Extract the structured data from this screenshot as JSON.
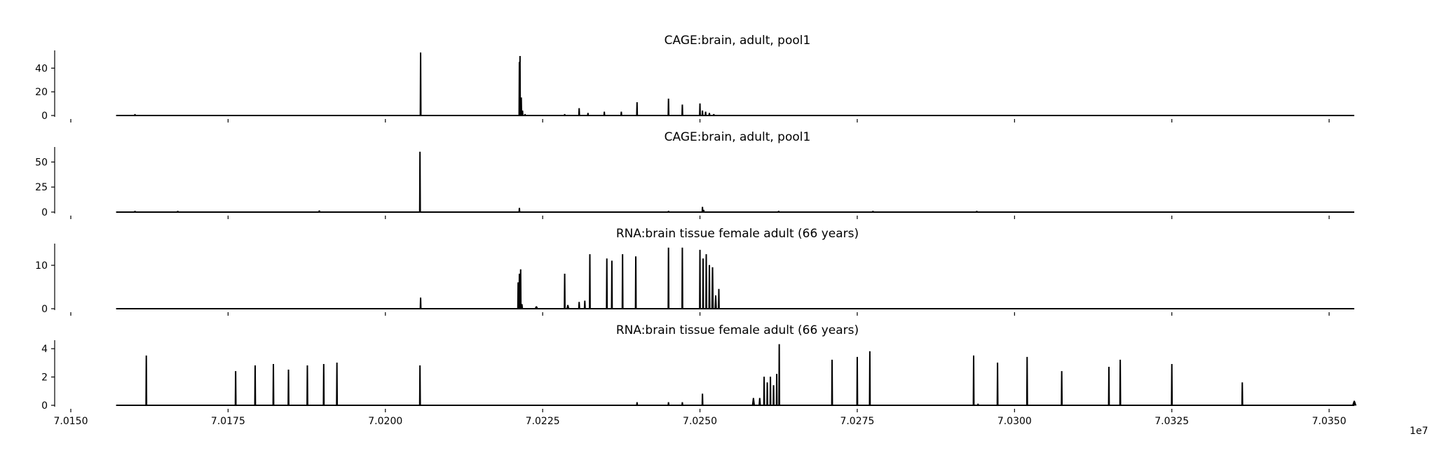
{
  "colors": {
    "fill": "#000000",
    "axis": "#000000",
    "background": "#ffffff"
  },
  "x_axis": {
    "tick_labels": [
      "7.0150",
      "7.0175",
      "7.0200",
      "7.0225",
      "7.0250",
      "7.0275",
      "7.0300",
      "7.0325",
      "7.0350"
    ],
    "offset_label": "1e7"
  },
  "chart_data": [
    {
      "type": "area",
      "title": "CAGE:brain, adult, pool1",
      "xlim": [
        70150000,
        70355000
      ],
      "ylim": [
        0,
        55
      ],
      "y_ticks": [
        0,
        20,
        40
      ],
      "y_tick_labels": [
        "0",
        "20",
        "40"
      ],
      "baseline": {
        "x_start": 70157200,
        "x_end": 70354000
      },
      "peaks": [
        {
          "x": 70160200,
          "y": 1,
          "w": 150
        },
        {
          "x": 70205600,
          "y": 53,
          "w": 150
        },
        {
          "x": 70221300,
          "y": 45,
          "w": 120
        },
        {
          "x": 70221400,
          "y": 50,
          "w": 120
        },
        {
          "x": 70221600,
          "y": 15,
          "w": 120
        },
        {
          "x": 70221800,
          "y": 4,
          "w": 150
        },
        {
          "x": 70222200,
          "y": 1,
          "w": 250
        },
        {
          "x": 70228500,
          "y": 1,
          "w": 200
        },
        {
          "x": 70230800,
          "y": 6,
          "w": 120
        },
        {
          "x": 70232200,
          "y": 2,
          "w": 120
        },
        {
          "x": 70234800,
          "y": 3,
          "w": 120
        },
        {
          "x": 70237500,
          "y": 3,
          "w": 120
        },
        {
          "x": 70240000,
          "y": 11,
          "w": 120
        },
        {
          "x": 70245000,
          "y": 14,
          "w": 120
        },
        {
          "x": 70247200,
          "y": 9,
          "w": 120
        },
        {
          "x": 70250000,
          "y": 10,
          "w": 120
        },
        {
          "x": 70250400,
          "y": 4,
          "w": 150
        },
        {
          "x": 70250900,
          "y": 3,
          "w": 200
        },
        {
          "x": 70251500,
          "y": 2,
          "w": 250
        },
        {
          "x": 70252200,
          "y": 1,
          "w": 300
        }
      ]
    },
    {
      "type": "area",
      "title": "CAGE:brain, adult, pool1",
      "xlim": [
        70150000,
        70355000
      ],
      "ylim": [
        0,
        65
      ],
      "y_ticks": [
        0,
        25,
        50
      ],
      "y_tick_labels": [
        "0",
        "25",
        "50"
      ],
      "baseline": {
        "x_start": 70157200,
        "x_end": 70354000
      },
      "peaks": [
        {
          "x": 70160200,
          "y": 1,
          "w": 150
        },
        {
          "x": 70167000,
          "y": 1,
          "w": 150
        },
        {
          "x": 70189500,
          "y": 1.5,
          "w": 150
        },
        {
          "x": 70205500,
          "y": 60,
          "w": 150
        },
        {
          "x": 70221300,
          "y": 4,
          "w": 150
        },
        {
          "x": 70245000,
          "y": 1,
          "w": 150
        },
        {
          "x": 70250400,
          "y": 5,
          "w": 150
        },
        {
          "x": 70250600,
          "y": 2,
          "w": 150
        },
        {
          "x": 70262500,
          "y": 1,
          "w": 300
        },
        {
          "x": 70277500,
          "y": 1,
          "w": 150
        },
        {
          "x": 70294000,
          "y": 1,
          "w": 150
        }
      ]
    },
    {
      "type": "area",
      "title": "RNA:brain tissue female adult (66 years)",
      "xlim": [
        70150000,
        70355000
      ],
      "ylim": [
        0,
        15
      ],
      "y_ticks": [
        0,
        10
      ],
      "y_tick_labels": [
        "0",
        "10"
      ],
      "baseline": {
        "x_start": 70157200,
        "x_end": 70354000
      },
      "peaks": [
        {
          "x": 70205600,
          "y": 2.5,
          "w": 150
        },
        {
          "x": 70221100,
          "y": 6,
          "w": 120
        },
        {
          "x": 70221300,
          "y": 8,
          "w": 120
        },
        {
          "x": 70221500,
          "y": 9,
          "w": 120
        },
        {
          "x": 70221700,
          "y": 1,
          "w": 300
        },
        {
          "x": 70224000,
          "y": 0.5,
          "w": 500
        },
        {
          "x": 70228500,
          "y": 8,
          "w": 120
        },
        {
          "x": 70229000,
          "y": 0.8,
          "w": 400
        },
        {
          "x": 70230800,
          "y": 1.5,
          "w": 250
        },
        {
          "x": 70231700,
          "y": 1.8,
          "w": 250
        },
        {
          "x": 70232500,
          "y": 12.5,
          "w": 120
        },
        {
          "x": 70235200,
          "y": 11.5,
          "w": 120
        },
        {
          "x": 70236000,
          "y": 11,
          "w": 120
        },
        {
          "x": 70237700,
          "y": 12.5,
          "w": 120
        },
        {
          "x": 70239800,
          "y": 12,
          "w": 120
        },
        {
          "x": 70245000,
          "y": 14,
          "w": 120
        },
        {
          "x": 70247200,
          "y": 14,
          "w": 120
        },
        {
          "x": 70250000,
          "y": 13.5,
          "w": 120
        },
        {
          "x": 70250500,
          "y": 11.5,
          "w": 200
        },
        {
          "x": 70251000,
          "y": 12.5,
          "w": 200
        },
        {
          "x": 70251500,
          "y": 10,
          "w": 250
        },
        {
          "x": 70252000,
          "y": 9.5,
          "w": 300
        },
        {
          "x": 70252500,
          "y": 3,
          "w": 300
        },
        {
          "x": 70253000,
          "y": 4.5,
          "w": 200
        }
      ]
    },
    {
      "type": "area",
      "title": "RNA:brain tissue female adult (66 years)",
      "xlim": [
        70150000,
        70355000
      ],
      "ylim": [
        0,
        4.6
      ],
      "y_ticks": [
        0,
        2,
        4
      ],
      "y_tick_labels": [
        "0",
        "2",
        "4"
      ],
      "baseline": {
        "x_start": 70157200,
        "x_end": 70354000
      },
      "peaks": [
        {
          "x": 70162000,
          "y": 3.5,
          "w": 120
        },
        {
          "x": 70176200,
          "y": 2.4,
          "w": 120
        },
        {
          "x": 70179300,
          "y": 2.8,
          "w": 120
        },
        {
          "x": 70182200,
          "y": 2.9,
          "w": 120
        },
        {
          "x": 70184600,
          "y": 2.5,
          "w": 120
        },
        {
          "x": 70187600,
          "y": 2.8,
          "w": 120
        },
        {
          "x": 70190200,
          "y": 2.9,
          "w": 120
        },
        {
          "x": 70192300,
          "y": 3.0,
          "w": 120
        },
        {
          "x": 70205500,
          "y": 2.8,
          "w": 120
        },
        {
          "x": 70240000,
          "y": 0.2,
          "w": 150
        },
        {
          "x": 70245000,
          "y": 0.2,
          "w": 150
        },
        {
          "x": 70247200,
          "y": 0.2,
          "w": 150
        },
        {
          "x": 70250400,
          "y": 0.8,
          "w": 150
        },
        {
          "x": 70258500,
          "y": 0.5,
          "w": 400
        },
        {
          "x": 70259500,
          "y": 0.5,
          "w": 300
        },
        {
          "x": 70260200,
          "y": 2.0,
          "w": 200
        },
        {
          "x": 70260700,
          "y": 1.6,
          "w": 200
        },
        {
          "x": 70261200,
          "y": 2.0,
          "w": 200
        },
        {
          "x": 70261700,
          "y": 1.4,
          "w": 200
        },
        {
          "x": 70262200,
          "y": 2.2,
          "w": 200
        },
        {
          "x": 70262600,
          "y": 4.3,
          "w": 150
        },
        {
          "x": 70271000,
          "y": 3.2,
          "w": 120
        },
        {
          "x": 70275000,
          "y": 3.4,
          "w": 120
        },
        {
          "x": 70277000,
          "y": 3.8,
          "w": 120
        },
        {
          "x": 70293500,
          "y": 3.5,
          "w": 120
        },
        {
          "x": 70294200,
          "y": 0.1,
          "w": 150
        },
        {
          "x": 70297300,
          "y": 3.0,
          "w": 120
        },
        {
          "x": 70302000,
          "y": 3.4,
          "w": 120
        },
        {
          "x": 70307500,
          "y": 2.4,
          "w": 120
        },
        {
          "x": 70315000,
          "y": 2.7,
          "w": 120
        },
        {
          "x": 70316800,
          "y": 3.2,
          "w": 120
        },
        {
          "x": 70325000,
          "y": 2.9,
          "w": 120
        },
        {
          "x": 70336200,
          "y": 1.6,
          "w": 120
        },
        {
          "x": 70354000,
          "y": 0.3,
          "w": 600
        }
      ]
    }
  ]
}
